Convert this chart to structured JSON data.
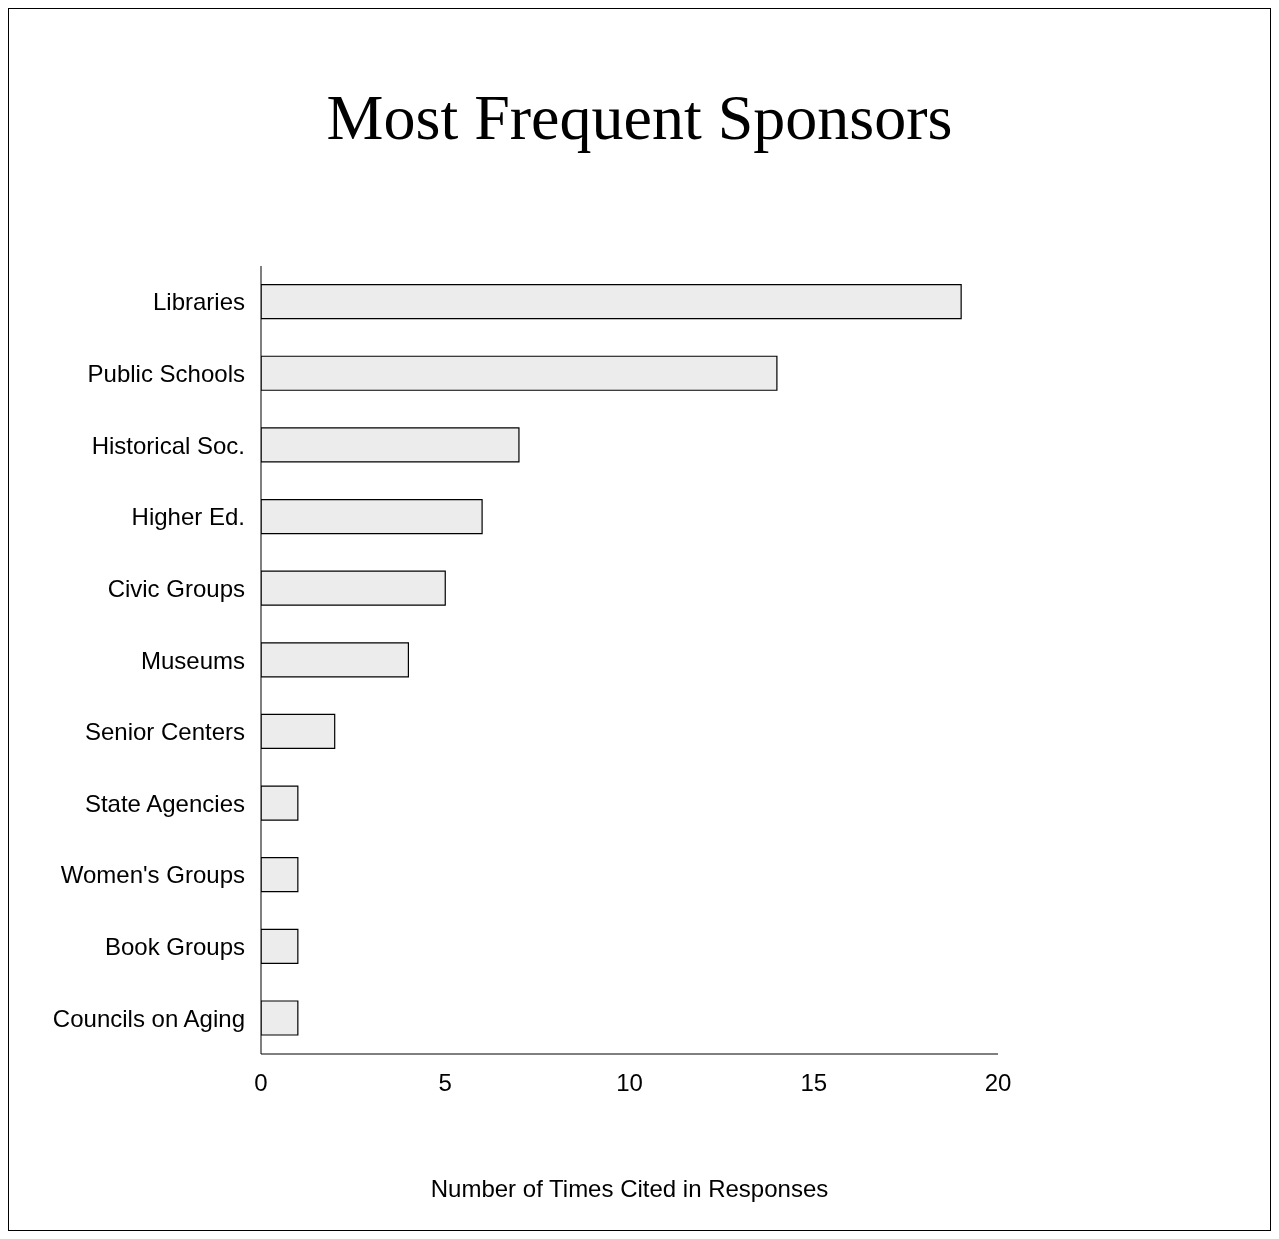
{
  "chart_data": {
    "type": "bar",
    "orientation": "horizontal",
    "title": "Most Frequent Sponsors",
    "xlabel": "Number of Times Cited in Responses",
    "categories": [
      "Libraries",
      "Public Schools",
      "Historical Soc.",
      "Higher Ed.",
      "Civic Groups",
      "Museums",
      "Senior Centers",
      "State Agencies",
      "Women's Groups",
      "Book Groups",
      "Councils on Aging"
    ],
    "values": [
      19,
      14,
      7,
      6,
      5,
      4,
      2,
      1,
      1,
      1,
      1
    ],
    "color": "#ececec",
    "xlim": [
      0,
      20
    ],
    "xticks": [
      0,
      5,
      10,
      15,
      20
    ],
    "grid": false,
    "legend": false
  }
}
